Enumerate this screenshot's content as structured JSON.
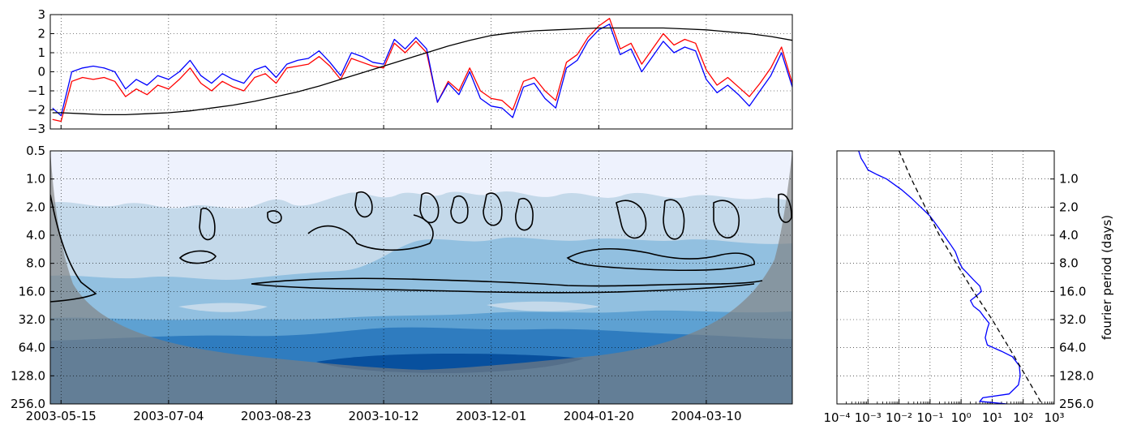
{
  "chart_data": [
    {
      "type": "line",
      "panel": "time-series",
      "ylim": [
        -3,
        3
      ],
      "y_ticks": [
        "3",
        "2",
        "1",
        "0",
        "−1",
        "−2",
        "−3"
      ],
      "x_ticks": [
        "2003-05-15",
        "2003-07-04",
        "2003-08-23",
        "2003-10-12",
        "2003-12-01",
        "2004-01-20",
        "2004-03-10"
      ],
      "x_tick_days": [
        0,
        50,
        100,
        150,
        200,
        250,
        300
      ],
      "x_range_days": [
        -5,
        340
      ],
      "grid": true,
      "series": [
        {
          "color": "#ff0000",
          "x": [
            -4,
            0,
            5,
            10,
            15,
            20,
            25,
            30,
            35,
            40,
            45,
            50,
            55,
            60,
            65,
            70,
            75,
            80,
            85,
            90,
            95,
            100,
            105,
            110,
            115,
            120,
            125,
            130,
            135,
            140,
            145,
            150,
            155,
            160,
            165,
            170,
            175,
            180,
            185,
            190,
            195,
            200,
            205,
            210,
            215,
            220,
            225,
            230,
            235,
            240,
            245,
            250,
            255,
            260,
            265,
            270,
            275,
            280,
            285,
            290,
            295,
            300,
            305,
            310,
            315,
            320,
            325,
            330,
            335,
            340
          ],
          "values": [
            -2.5,
            -2.6,
            -0.5,
            -0.3,
            -0.4,
            -0.3,
            -0.5,
            -1.3,
            -0.9,
            -1.2,
            -0.7,
            -0.9,
            -0.4,
            0.2,
            -0.6,
            -1.0,
            -0.5,
            -0.8,
            -1.0,
            -0.3,
            -0.1,
            -0.6,
            0.2,
            0.3,
            0.4,
            0.8,
            0.3,
            -0.4,
            0.7,
            0.5,
            0.3,
            0.2,
            1.5,
            1.0,
            1.6,
            1.0,
            -1.6,
            -0.5,
            -1.0,
            0.2,
            -1.0,
            -1.4,
            -1.5,
            -2.0,
            -0.5,
            -0.3,
            -1.0,
            -1.5,
            0.5,
            0.9,
            1.8,
            2.4,
            2.8,
            1.2,
            1.5,
            0.4,
            1.2,
            2.0,
            1.4,
            1.7,
            1.5,
            0.1,
            -0.7,
            -0.3,
            -0.8,
            -1.3,
            -0.6,
            0.2,
            1.3,
            -0.6
          ]
        },
        {
          "color": "#0000ff",
          "x": [
            -4,
            0,
            5,
            10,
            15,
            20,
            25,
            30,
            35,
            40,
            45,
            50,
            55,
            60,
            65,
            70,
            75,
            80,
            85,
            90,
            95,
            100,
            105,
            110,
            115,
            120,
            125,
            130,
            135,
            140,
            145,
            150,
            155,
            160,
            165,
            170,
            175,
            180,
            185,
            190,
            195,
            200,
            205,
            210,
            215,
            220,
            225,
            230,
            235,
            240,
            245,
            250,
            255,
            260,
            265,
            270,
            275,
            280,
            285,
            290,
            295,
            300,
            305,
            310,
            315,
            320,
            325,
            330,
            335,
            340
          ],
          "values": [
            -1.9,
            -2.3,
            0.0,
            0.2,
            0.3,
            0.2,
            0.0,
            -0.9,
            -0.4,
            -0.7,
            -0.2,
            -0.4,
            0.0,
            0.6,
            -0.2,
            -0.6,
            -0.1,
            -0.4,
            -0.6,
            0.1,
            0.3,
            -0.3,
            0.4,
            0.6,
            0.7,
            1.1,
            0.5,
            -0.2,
            1.0,
            0.8,
            0.5,
            0.4,
            1.7,
            1.2,
            1.8,
            1.2,
            -1.6,
            -0.6,
            -1.2,
            0.0,
            -1.4,
            -1.8,
            -1.9,
            -2.4,
            -0.8,
            -0.6,
            -1.4,
            -1.9,
            0.2,
            0.6,
            1.6,
            2.2,
            2.5,
            0.9,
            1.2,
            0.0,
            0.8,
            1.6,
            1.0,
            1.3,
            1.1,
            -0.4,
            -1.1,
            -0.7,
            -1.2,
            -1.8,
            -1.0,
            -0.2,
            1.0,
            -0.8
          ]
        },
        {
          "color": "#000000",
          "x": [
            -4,
            0,
            10,
            20,
            30,
            40,
            50,
            60,
            70,
            80,
            90,
            100,
            110,
            120,
            130,
            140,
            150,
            160,
            170,
            180,
            190,
            200,
            210,
            220,
            230,
            240,
            250,
            260,
            270,
            280,
            290,
            300,
            310,
            320,
            330,
            340
          ],
          "values": [
            -2.15,
            -2.15,
            -2.2,
            -2.25,
            -2.25,
            -2.2,
            -2.15,
            -2.05,
            -1.9,
            -1.75,
            -1.55,
            -1.3,
            -1.05,
            -0.75,
            -0.4,
            -0.05,
            0.3,
            0.65,
            1.0,
            1.35,
            1.65,
            1.9,
            2.05,
            2.15,
            2.2,
            2.25,
            2.3,
            2.3,
            2.3,
            2.3,
            2.25,
            2.2,
            2.1,
            2.0,
            1.85,
            1.65
          ]
        }
      ]
    },
    {
      "type": "heatmap",
      "panel": "wavelet-power-spectrum",
      "y_scale": "log2",
      "y_ticks": [
        "0.5",
        "1.0",
        "2.0",
        "4.0",
        "8.0",
        "16.0",
        "32.0",
        "64.0",
        "128.0",
        "256.0"
      ],
      "x_ticks": [
        "2003-05-15",
        "2003-07-04",
        "2003-08-23",
        "2003-10-12",
        "2003-12-01",
        "2004-01-20",
        "2004-03-10"
      ],
      "grid": true,
      "color_levels": [
        "#eef2fd",
        "#c4d9ea",
        "#92c0e0",
        "#5ea1d2",
        "#2f7cbf",
        "#08509e"
      ],
      "cone_of_influence_color": "#808080"
    },
    {
      "type": "line",
      "panel": "global-wavelet-spectrum",
      "x_scale": "log",
      "x_ticks": [
        "10⁻⁴",
        "10⁻³",
        "10⁻²",
        "10⁻¹",
        "10⁰",
        "10¹",
        "10²",
        "10³"
      ],
      "y_ticks": [
        "1.0",
        "2.0",
        "4.0",
        "8.0",
        "16.0",
        "32.0",
        "64.0",
        "128.0",
        "256.0"
      ],
      "ylabel": "fourier period (days)",
      "grid": true,
      "series": [
        {
          "style": "solid",
          "color": "#0000ff",
          "period": [
            0.5,
            0.6,
            0.7,
            0.8,
            0.9,
            1.0,
            1.3,
            1.6,
            2.0,
            2.5,
            3.0,
            4.0,
            5.0,
            6.0,
            8.0,
            9.0,
            10.0,
            12.0,
            14.0,
            16.0,
            18.0,
            20.0,
            23.0,
            26.0,
            30.0,
            35.0,
            40.0,
            50.0,
            60.0,
            70.0,
            80.0,
            100.0,
            128.0,
            160.0,
            200.0,
            220.0,
            240.0,
            256.0
          ],
          "power": [
            0.0005,
            0.0006,
            0.0008,
            0.001,
            0.002,
            0.004,
            0.012,
            0.025,
            0.05,
            0.1,
            0.15,
            0.28,
            0.45,
            0.65,
            0.9,
            1.1,
            1.5,
            2.5,
            4.0,
            4.5,
            3.0,
            2.0,
            2.5,
            4.0,
            5.5,
            8.0,
            7.0,
            6.0,
            7.0,
            20.0,
            45.0,
            75.0,
            80.0,
            70.0,
            35.0,
            5.0,
            4.0,
            30.0
          ]
        },
        {
          "style": "dashed",
          "color": "#000000",
          "period": [
            0.5,
            1.0,
            2.0,
            4.0,
            8.0,
            16.0,
            32.0,
            64.0,
            128.0,
            256.0
          ],
          "power": [
            0.01,
            0.025,
            0.07,
            0.2,
            0.7,
            2.5,
            10.0,
            35.0,
            120.0,
            400.0
          ]
        }
      ]
    }
  ]
}
